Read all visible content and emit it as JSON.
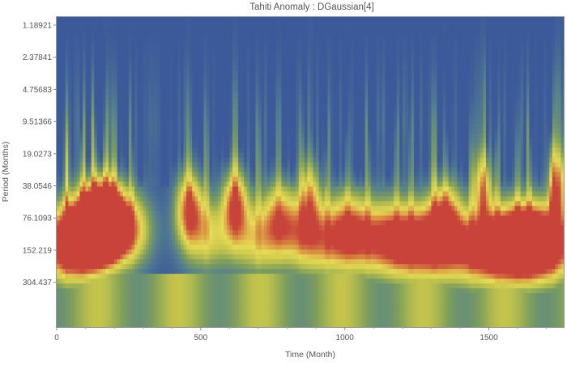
{
  "chart_data": {
    "type": "heatmap",
    "title": "Tahiti Anomaly : DGaussian[4]",
    "xlabel": "Time (Month)",
    "ylabel": "Period (Months)",
    "xlim": [
      0,
      1760
    ],
    "x_ticks": [
      {
        "value": 0,
        "label": "0"
      },
      {
        "value": 500,
        "label": "500"
      },
      {
        "value": 1000,
        "label": "1000"
      },
      {
        "value": 1500,
        "label": "1500"
      }
    ],
    "y_scale": "log",
    "ylim": [
      1.0,
      800.0
    ],
    "y_ticks": [
      {
        "value": 1.18921,
        "label": "1.18921"
      },
      {
        "value": 2.37841,
        "label": "2.37841"
      },
      {
        "value": 4.75683,
        "label": "4.75683"
      },
      {
        "value": 9.51366,
        "label": "9.51366"
      },
      {
        "value": 19.0273,
        "label": "19.0273"
      },
      {
        "value": 38.0546,
        "label": "38.0546"
      },
      {
        "value": 76.1093,
        "label": "76.1093"
      },
      {
        "value": 152.219,
        "label": "152.219"
      },
      {
        "value": 304.437,
        "label": "304.437"
      }
    ],
    "colormap": [
      "#3c5a9a",
      "#557f8e",
      "#7fa05a",
      "#c4c44c",
      "#e6dc56",
      "#d99042",
      "#c8433a"
    ],
    "cell_periods": [
      1.18921,
      2.37841,
      4.75683,
      9.51366,
      19.0273,
      38.0546,
      76.1093,
      152.219,
      304.437,
      608.874
    ],
    "hotspots": [
      {
        "time": 35,
        "period": 140,
        "intensity": 1.0
      },
      {
        "time": 90,
        "period": 110,
        "intensity": 0.9
      },
      {
        "time": 130,
        "period": 85,
        "intensity": 0.95
      },
      {
        "time": 170,
        "period": 75,
        "intensity": 1.0
      },
      {
        "time": 200,
        "period": 95,
        "intensity": 0.75
      },
      {
        "time": 260,
        "period": 100,
        "intensity": 0.6
      },
      {
        "time": 460,
        "period": 60,
        "intensity": 0.85
      },
      {
        "time": 520,
        "period": 110,
        "intensity": 0.6
      },
      {
        "time": 620,
        "period": 55,
        "intensity": 0.9
      },
      {
        "time": 700,
        "period": 120,
        "intensity": 0.65
      },
      {
        "time": 770,
        "period": 70,
        "intensity": 0.55
      },
      {
        "time": 850,
        "period": 100,
        "intensity": 0.6
      },
      {
        "time": 880,
        "period": 45,
        "intensity": 0.55
      },
      {
        "time": 940,
        "period": 130,
        "intensity": 0.6
      },
      {
        "time": 1010,
        "period": 90,
        "intensity": 0.55
      },
      {
        "time": 1080,
        "period": 120,
        "intensity": 0.6
      },
      {
        "time": 1180,
        "period": 110,
        "intensity": 0.6
      },
      {
        "time": 1230,
        "period": 150,
        "intensity": 0.55
      },
      {
        "time": 1310,
        "period": 120,
        "intensity": 0.75
      },
      {
        "time": 1350,
        "period": 70,
        "intensity": 0.65
      },
      {
        "time": 1440,
        "period": 150,
        "intensity": 0.65
      },
      {
        "time": 1480,
        "period": 40,
        "intensity": 0.75
      },
      {
        "time": 1530,
        "period": 150,
        "intensity": 0.7
      },
      {
        "time": 1600,
        "period": 130,
        "intensity": 0.7
      },
      {
        "time": 1640,
        "period": 120,
        "intensity": 0.75
      },
      {
        "time": 1720,
        "period": 140,
        "intensity": 0.9
      },
      {
        "time": 1740,
        "period": 38,
        "intensity": 0.8
      }
    ],
    "grid": false,
    "legend": "none"
  }
}
